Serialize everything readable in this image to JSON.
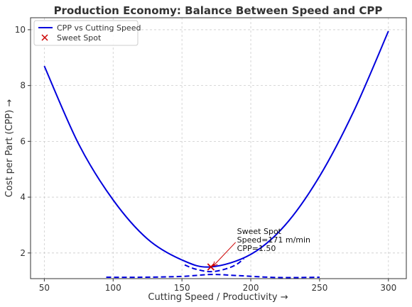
{
  "chart_data": {
    "type": "line",
    "title": "Production Economy: Balance Between Speed and CPP",
    "xlabel": "Cutting Speed / Productivity →",
    "ylabel": "Cost per Part (CPP) →",
    "xlim": [
      40,
      313
    ],
    "ylim": [
      1.08,
      10.43
    ],
    "xticks": [
      50,
      100,
      150,
      200,
      250,
      300
    ],
    "yticks": [
      2,
      4,
      6,
      8,
      10
    ],
    "grid": true,
    "legend_position": "top-left",
    "series": [
      {
        "name": "CPP vs Cutting Speed",
        "style": "solid",
        "color": "#0000dd",
        "points": [
          [
            50,
            8.7
          ],
          [
            75,
            5.9
          ],
          [
            100,
            3.9
          ],
          [
            125,
            2.5
          ],
          [
            150,
            1.75
          ],
          [
            171,
            1.5
          ],
          [
            200,
            1.95
          ],
          [
            225,
            3.0
          ],
          [
            250,
            4.75
          ],
          [
            275,
            7.1
          ],
          [
            300,
            9.95
          ]
        ]
      },
      {
        "name": "",
        "style": "dashed",
        "color": "#0000dd",
        "points": [
          [
            152,
            1.57
          ],
          [
            160,
            1.42
          ],
          [
            171,
            1.33
          ],
          [
            182,
            1.43
          ],
          [
            190,
            1.6
          ],
          [
            195,
            1.8
          ]
        ]
      },
      {
        "name": "",
        "style": "dashed",
        "color": "#0000dd",
        "points": [
          [
            95,
            1.13
          ],
          [
            120,
            1.13
          ],
          [
            150,
            1.16
          ],
          [
            171,
            1.23
          ],
          [
            190,
            1.19
          ],
          [
            220,
            1.12
          ],
          [
            250,
            1.13
          ]
        ]
      }
    ],
    "sweet_spot": {
      "name": "Sweet Spot",
      "x": 171,
      "y": 1.5,
      "color": "#cc0000",
      "annotation_lines": [
        "Sweet Spot",
        "Speed=171 m/min",
        "CPP=1.50"
      ],
      "annotation_x": 190,
      "annotation_y": 2.38
    }
  }
}
